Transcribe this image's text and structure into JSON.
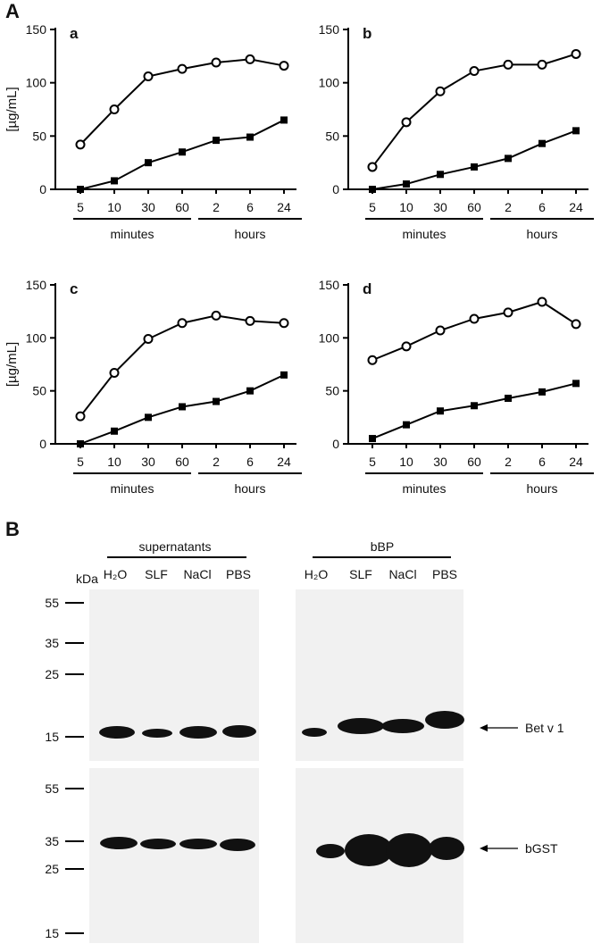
{
  "figure_labels": {
    "a": "A",
    "b": "B"
  },
  "chart_data": [
    {
      "type": "line",
      "title": "a",
      "y_label": "[µg/mL]",
      "categories": [
        "5",
        "10",
        "30",
        "60",
        "2",
        "6",
        "24"
      ],
      "category_groups": [
        {
          "label": "minutes",
          "span": 4
        },
        {
          "label": "hours",
          "span": 3
        }
      ],
      "series": [
        {
          "marker": "circle-open",
          "color": "#000000",
          "values": [
            42,
            75,
            106,
            113,
            119,
            122,
            116
          ]
        },
        {
          "marker": "square-filled",
          "color": "#000000",
          "values": [
            0,
            8,
            25,
            35,
            46,
            49,
            65
          ]
        }
      ],
      "ylim": [
        0,
        150
      ],
      "yticks": [
        0,
        50,
        100,
        150
      ]
    },
    {
      "type": "line",
      "title": "b",
      "categories": [
        "5",
        "10",
        "30",
        "60",
        "2",
        "6",
        "24"
      ],
      "category_groups": [
        {
          "label": "minutes",
          "span": 4
        },
        {
          "label": "hours",
          "span": 3
        }
      ],
      "series": [
        {
          "marker": "circle-open",
          "color": "#000000",
          "values": [
            21,
            63,
            92,
            111,
            117,
            117,
            127
          ]
        },
        {
          "marker": "square-filled",
          "color": "#000000",
          "values": [
            0,
            5,
            14,
            21,
            29,
            43,
            55
          ]
        }
      ],
      "ylim": [
        0,
        150
      ],
      "yticks": [
        0,
        50,
        100,
        150
      ]
    },
    {
      "type": "line",
      "title": "c",
      "y_label": "[µg/mL]",
      "categories": [
        "5",
        "10",
        "30",
        "60",
        "2",
        "6",
        "24"
      ],
      "category_groups": [
        {
          "label": "minutes",
          "span": 4
        },
        {
          "label": "hours",
          "span": 3
        }
      ],
      "series": [
        {
          "marker": "circle-open",
          "color": "#000000",
          "values": [
            26,
            67,
            99,
            114,
            121,
            116,
            114
          ]
        },
        {
          "marker": "square-filled",
          "color": "#000000",
          "values": [
            0,
            12,
            25,
            35,
            40,
            50,
            65
          ]
        }
      ],
      "ylim": [
        0,
        150
      ],
      "yticks": [
        0,
        50,
        100,
        150
      ]
    },
    {
      "type": "line",
      "title": "d",
      "categories": [
        "5",
        "10",
        "30",
        "60",
        "2",
        "6",
        "24"
      ],
      "category_groups": [
        {
          "label": "minutes",
          "span": 4
        },
        {
          "label": "hours",
          "span": 3
        }
      ],
      "series": [
        {
          "marker": "circle-open",
          "color": "#000000",
          "values": [
            79,
            92,
            107,
            118,
            124,
            134,
            113
          ]
        },
        {
          "marker": "square-filled",
          "color": "#000000",
          "values": [
            5,
            18,
            31,
            36,
            43,
            49,
            57
          ]
        }
      ],
      "ylim": [
        0,
        150
      ],
      "yticks": [
        0,
        50,
        100,
        150
      ]
    }
  ],
  "blot": {
    "groups": [
      "supernatants",
      "bBP"
    ],
    "unit": "kDa",
    "lanes": [
      [
        "H₂O",
        "SLF",
        "NaCl",
        "PBS"
      ],
      [
        "H₂O",
        "SLF",
        "NaCl",
        "PBS"
      ]
    ],
    "markers_top": [
      "55",
      "35",
      "25",
      "15"
    ],
    "markers_bottom": [
      "55",
      "35",
      "25",
      "15"
    ],
    "bands": [
      "Bet v 1",
      "bGST"
    ]
  }
}
